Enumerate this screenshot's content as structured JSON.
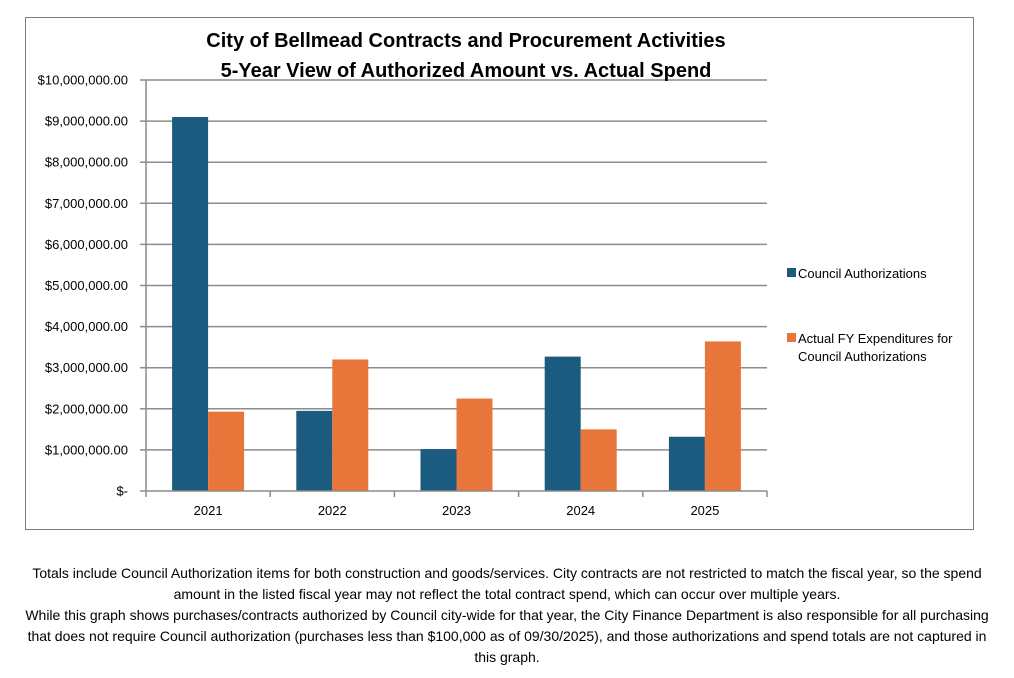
{
  "chart_data": {
    "type": "bar",
    "title": [
      "City of Bellmead Contracts and Procurement Activities",
      "5-Year View of Authorized Amount vs. Actual Spend"
    ],
    "categories": [
      "2021",
      "2022",
      "2023",
      "2024",
      "2025"
    ],
    "series": [
      {
        "name": "Council Authorizations",
        "color": "#1a5b7f",
        "values": [
          9100000,
          1950000,
          1020000,
          3270000,
          1320000
        ]
      },
      {
        "name": "Actual FY Expenditures for Council Authorizations",
        "color": "#e8763a",
        "values": [
          1930000,
          3200000,
          2250000,
          1500000,
          3640000
        ]
      }
    ],
    "legend_lines": [
      [
        "Council Authorizations"
      ],
      [
        "Actual FY Expenditures for",
        "Council Authorizations"
      ]
    ],
    "ylim": [
      0,
      10000000
    ],
    "yticks": [
      0,
      1000000,
      2000000,
      3000000,
      4000000,
      5000000,
      6000000,
      7000000,
      8000000,
      9000000,
      10000000
    ],
    "ytick_labels": [
      "$-",
      "$1,000,000.00",
      "$2,000,000.00",
      "$3,000,000.00",
      "$4,000,000.00",
      "$5,000,000.00",
      "$6,000,000.00",
      "$7,000,000.00",
      "$8,000,000.00",
      "$9,000,000.00",
      "$10,000,000.00"
    ],
    "grid": true,
    "legend_position": "right",
    "xlabel": "",
    "ylabel": ""
  },
  "footnote": {
    "line1": "Totals include Council Authorization items for both construction and goods/services. City contracts are not restricted to match the fiscal year, so the spend amount in the listed fiscal year may not reflect the total contract spend, which can occur over multiple years.",
    "line2": "While this graph shows purchases/contracts authorized by Council city-wide for that year, the City Finance Department is also responsible for all purchasing that does not require Council authorization (purchases less than $100,000 as of 09/30/2025), and those authorizations and spend totals are not captured in this graph."
  }
}
